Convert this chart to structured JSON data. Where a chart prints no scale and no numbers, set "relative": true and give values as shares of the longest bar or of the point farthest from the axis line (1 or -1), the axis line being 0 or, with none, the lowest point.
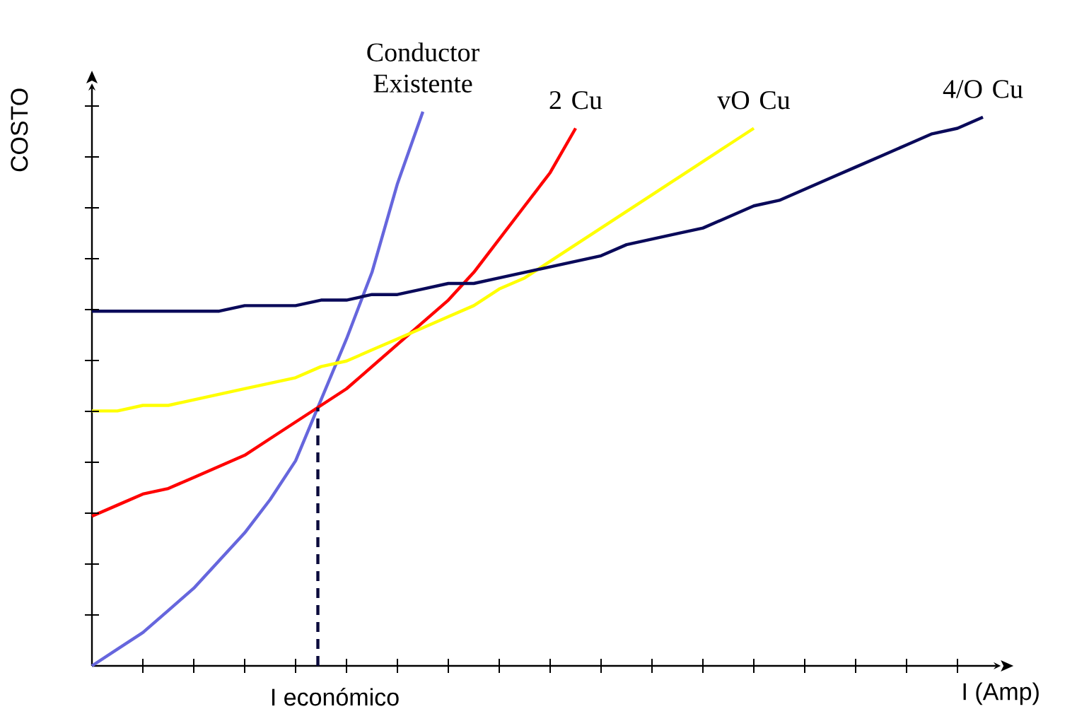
{
  "chart_data": {
    "type": "line",
    "relative": true,
    "xlabel": "I (Amp)",
    "ylabel": "COSTO",
    "marker": "none",
    "line_style": "solid",
    "categories": [
      null,
      null,
      null,
      null,
      null,
      null,
      null,
      null,
      null,
      null,
      null,
      null,
      null,
      null,
      null,
      null,
      null,
      null,
      null,
      null,
      null,
      null,
      null,
      null,
      null,
      null,
      null,
      null,
      null,
      null,
      null,
      null,
      null,
      null,
      null,
      null
    ],
    "series": [
      {
        "name": "Conductor Existente",
        "color": "#6666dd",
        "values": [
          0,
          0.03,
          0.06,
          0.1,
          0.14,
          0.19,
          0.24,
          0.3,
          0.37,
          0.48,
          0.59,
          0.71,
          0.87,
          1.0,
          null,
          null,
          null,
          null,
          null,
          null,
          null,
          null,
          null,
          null,
          null,
          null,
          null,
          null,
          null,
          null,
          null,
          null,
          null,
          null,
          null,
          null
        ]
      },
      {
        "name": "2 Cu",
        "color": "#ff0000",
        "values": [
          0.27,
          0.29,
          0.31,
          0.32,
          0.34,
          0.36,
          0.38,
          0.41,
          0.44,
          0.47,
          0.5,
          0.54,
          0.58,
          0.62,
          0.66,
          0.71,
          0.77,
          0.83,
          0.89,
          0.97,
          null,
          null,
          null,
          null,
          null,
          null,
          null,
          null,
          null,
          null,
          null,
          null,
          null,
          null,
          null,
          null
        ]
      },
      {
        "name": "vO Cu",
        "color": "#ffff00",
        "values": [
          0.46,
          0.46,
          0.47,
          0.47,
          0.48,
          0.49,
          0.5,
          0.51,
          0.52,
          0.54,
          0.55,
          0.57,
          0.59,
          0.61,
          0.63,
          0.65,
          0.68,
          0.7,
          0.73,
          0.76,
          0.79,
          0.82,
          0.85,
          0.88,
          0.91,
          0.94,
          0.97,
          null,
          null,
          null,
          null,
          null,
          null,
          null,
          null,
          null
        ]
      },
      {
        "name": "4/O Cu",
        "color": "#0a0a5a",
        "values": [
          0.64,
          0.64,
          0.64,
          0.64,
          0.64,
          0.64,
          0.65,
          0.65,
          0.65,
          0.66,
          0.66,
          0.67,
          0.67,
          0.68,
          0.69,
          0.69,
          0.7,
          0.71,
          0.72,
          0.73,
          0.74,
          0.76,
          0.77,
          0.78,
          0.79,
          0.81,
          0.83,
          0.84,
          0.86,
          0.88,
          0.9,
          0.92,
          0.94,
          0.96,
          0.97,
          0.99
        ]
      }
    ],
    "annotations": [
      "I económico"
    ]
  }
}
